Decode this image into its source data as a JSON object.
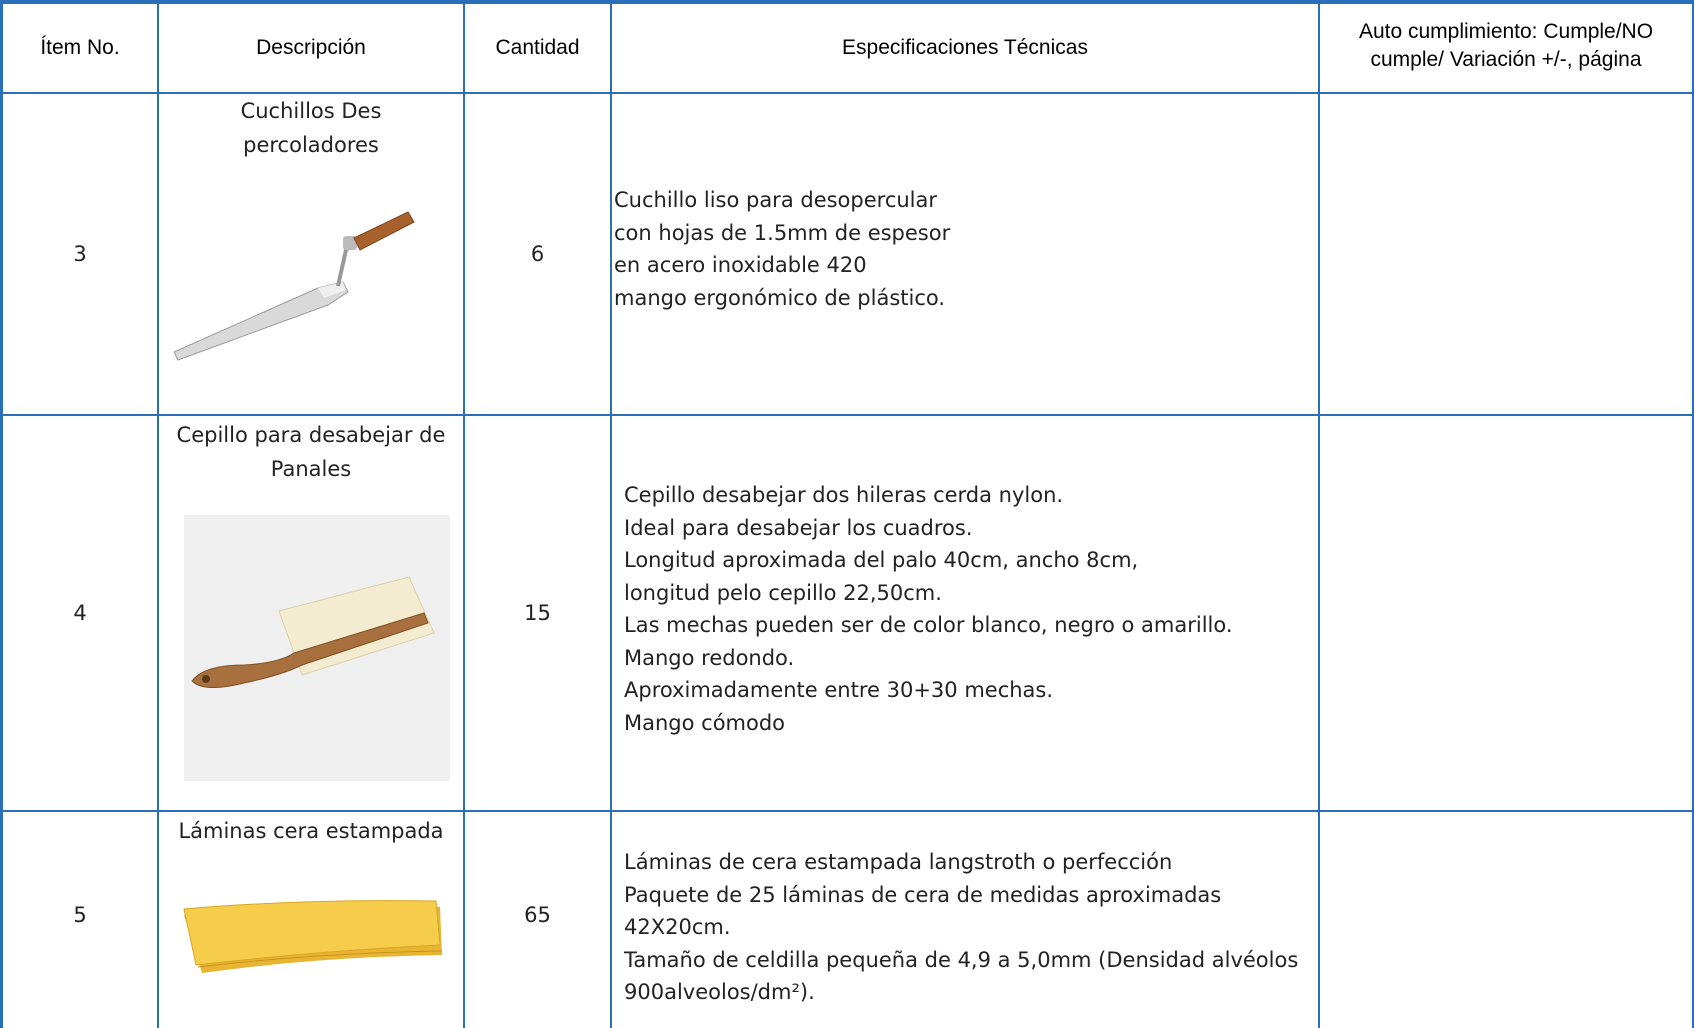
{
  "table": {
    "header": [
      "Ítem No.",
      "Descripción",
      "Cantidad",
      "Especificaciones Técnicas",
      "Auto cumplimiento: Cumple/NO cumple/ Variación +/-, página"
    ],
    "rows": [
      {
        "item": 3,
        "description": "Cuchillos Des percoladores",
        "quantity": 6,
        "specs": [
          "Cuchillo liso para desopercular",
          "con hojas de 1.5mm de espesor",
          "en acero inoxidable 420",
          "mango ergonómico de plástico."
        ]
      },
      {
        "item": 4,
        "description": "Cepillo para desabejar de Panales",
        "quantity": 15,
        "specs": [
          "Cepillo desabejar dos hileras cerda nylon.",
          "Ideal para desabejar los cuadros.",
          "Longitud aproximada del palo 40cm, ancho 8cm,",
          "longitud pelo cepillo 22,50cm.",
          "Las mechas pueden ser de color blanco, negro o amarillo.",
          "Mango redondo.",
          "Aproximadamente entre 30+30 mechas.",
          "Mango cómodo"
        ]
      },
      {
        "item": 5,
        "description": "Láminas cera estampada",
        "quantity": 65,
        "specs": [
          "Láminas de cera estampada langstroth o perfección",
          "Paquete de 25 láminas de cera de medidas aproximadas",
          "42X20cm.",
          "Tamaño de celdilla pequeña de 4,9 a 5,0mm (Densidad alvéolos",
          "900alveolos/dm²)."
        ]
      }
    ]
  }
}
